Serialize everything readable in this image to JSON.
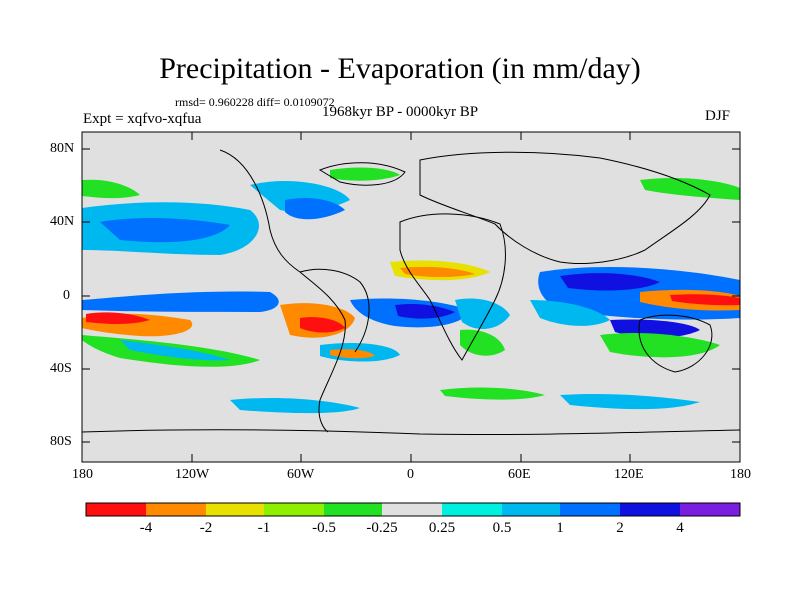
{
  "header": {
    "title": "Precipitation - Evaporation (in mm/day)",
    "stats": "rmsd= 0.960228 diff= 0.0109072",
    "experiment": "Expt = xqfvo-xqfua",
    "period": "1968kyr BP - 0000kyr BP",
    "season": "DJF"
  },
  "axes": {
    "lat_ticks": [
      "80N",
      "40N",
      "0",
      "40S",
      "80S"
    ],
    "lon_ticks": [
      "180",
      "120W",
      "60W",
      "0",
      "60E",
      "120E",
      "180"
    ]
  },
  "colorbar": {
    "colors": [
      "#ff1010",
      "#ff8a00",
      "#e8e000",
      "#8ef000",
      "#22e022",
      "#e0e0e0",
      "#00f0e0",
      "#00b8f0",
      "#0070ff",
      "#1010e0",
      "#7a1ee0"
    ],
    "labels": [
      "-4",
      "-2",
      "-1",
      "-0.5",
      "-0.25",
      "0.25",
      "0.5",
      "1",
      "2",
      "4"
    ]
  }
}
